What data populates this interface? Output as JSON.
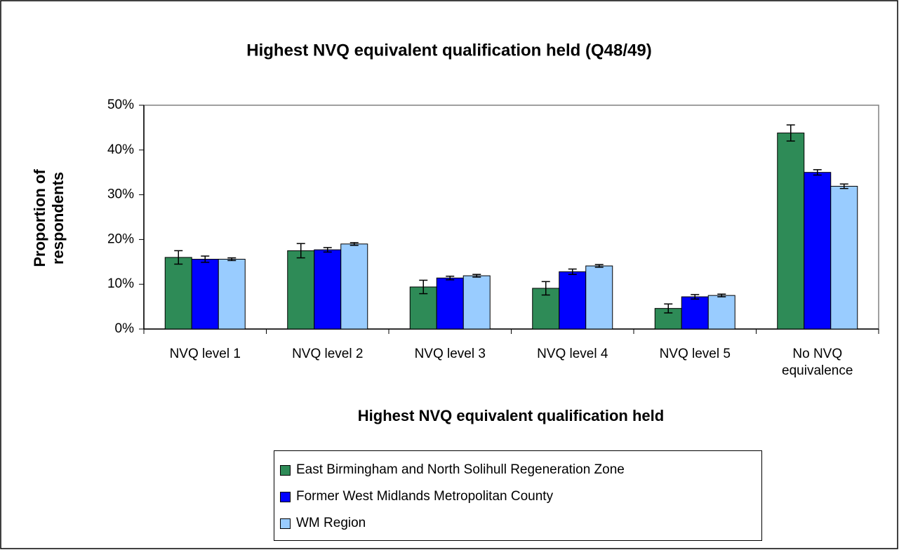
{
  "chart_data": {
    "type": "bar",
    "title": "Highest NVQ equivalent qualification held (Q48/49)",
    "x_label": "Highest NVQ equivalent qualification held",
    "y_label": "Proportion of respondents",
    "categories": [
      "NVQ level 1",
      "NVQ level 2",
      "NVQ level 3",
      "NVQ level 4",
      "NVQ level 5",
      "No NVQ equivalence"
    ],
    "series": [
      {
        "name": "East Birmingham and North Solihull Regeneration Zone",
        "color": "#2e8b57",
        "values": [
          16.0,
          17.5,
          9.4,
          9.1,
          4.6,
          43.8
        ],
        "errors": [
          1.5,
          1.6,
          1.5,
          1.5,
          1.0,
          1.8
        ]
      },
      {
        "name": "Former West Midlands Metropolitan County",
        "color": "#0000ff",
        "values": [
          15.6,
          17.7,
          11.4,
          12.8,
          7.2,
          35.0
        ],
        "errors": [
          0.7,
          0.5,
          0.4,
          0.6,
          0.5,
          0.6
        ]
      },
      {
        "name": "WM Region",
        "color": "#99ccff",
        "values": [
          15.6,
          19.0,
          11.9,
          14.1,
          7.5,
          31.9
        ],
        "errors": [
          0.3,
          0.3,
          0.3,
          0.3,
          0.3,
          0.5
        ]
      }
    ],
    "ylim": [
      0,
      50
    ],
    "yticks": [
      {
        "value": 0,
        "label": "0%"
      },
      {
        "value": 10,
        "label": "10%"
      },
      {
        "value": 20,
        "label": "20%"
      },
      {
        "value": 30,
        "label": "30%"
      },
      {
        "value": 40,
        "label": "40%"
      },
      {
        "value": 50,
        "label": "50%"
      }
    ],
    "grid": false,
    "legend": "bottom"
  }
}
